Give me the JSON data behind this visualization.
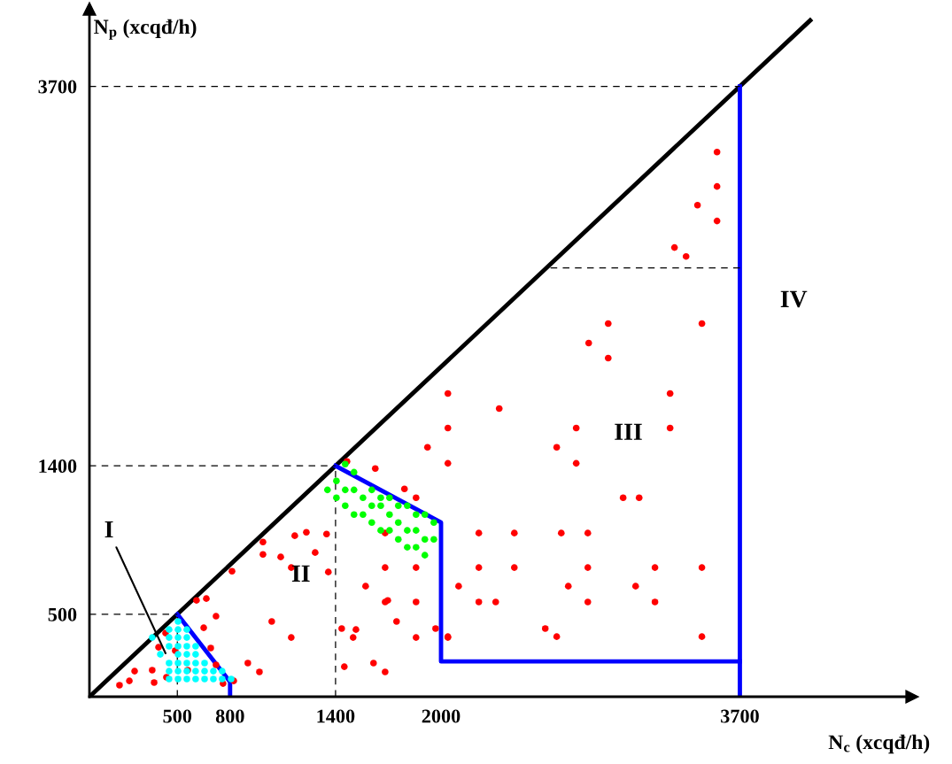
{
  "chart_data": {
    "type": "scatter",
    "xlabel": "N$_{c}$ (xcqđ/h)",
    "ylabel": "N$_{p}$ (xcqđ/h)",
    "xlim": [
      0,
      4680
    ],
    "ylim": [
      0,
      4170
    ],
    "xticks": [
      500,
      800,
      1400,
      2000,
      3700
    ],
    "yticks": [
      500,
      1400,
      3700
    ],
    "grid": false,
    "marker": "circle",
    "series": [
      {
        "color": "#ff0000",
        "x": [
          987,
          987,
          811,
          609,
          665,
          720,
          650,
          433,
          393,
          488,
          690,
          720,
          901,
          967,
          257,
          357,
          438,
          227,
          171,
          368,
          559,
          760,
          821,
          1923,
          2039,
          1626,
          1465,
          1792,
          1858,
          1168,
          1234,
          1349,
          1088,
          1284,
          1148,
          1359,
          1682,
          1682,
          1858,
          1571,
          2100,
          1682,
          1697,
          1858,
          1037,
          1747,
          1435,
          1516,
          1500,
          1148,
          1858,
          1969,
          2039,
          1450,
          1616,
          1682,
          2039,
          2331,
          2039,
          2769,
          2658,
          2769,
          2215,
          2417,
          2684,
          2835,
          2215,
          2417,
          2835,
          2724,
          2215,
          2311,
          2835,
          2593,
          2658,
          2039,
          2951,
          3484,
          2840,
          2951,
          3303,
          3303,
          3036,
          3127,
          3217,
          3484,
          3107,
          3217,
          3484,
          3570,
          3570,
          3459,
          3570,
          3328,
          3394
        ],
        "values": [
          938,
          863,
          761,
          584,
          595,
          488,
          418,
          386,
          300,
          279,
          295,
          193,
          204,
          150,
          155,
          161,
          118,
          96,
          70,
          86,
          161,
          80,
          96,
          1512,
          1415,
          1383,
          1426,
          1260,
          1206,
          976,
          997,
          986,
          847,
          874,
          783,
          756,
          992,
          783,
          783,
          670,
          670,
          574,
          584,
          574,
          456,
          456,
          413,
          407,
          359,
          359,
          359,
          413,
          359,
          182,
          204,
          150,
          1838,
          1747,
          1629,
          1629,
          1512,
          1415,
          992,
          992,
          992,
          992,
          783,
          783,
          783,
          670,
          574,
          574,
          574,
          413,
          364,
          364,
          2262,
          2262,
          2144,
          2053,
          1838,
          1629,
          1206,
          1206,
          783,
          783,
          670,
          574,
          364,
          3302,
          3093,
          2980,
          2884,
          2723,
          2669
        ]
      },
      {
        "color": "#00ff00",
        "x": [
          1455,
          1505,
          1405,
          1354,
          1455,
          1505,
          1606,
          1405,
          1556,
          1657,
          1707,
          1455,
          1606,
          1657,
          1757,
          1808,
          1505,
          1556,
          1707,
          1858,
          1908,
          1606,
          1757,
          1959,
          1657,
          1707,
          1808,
          1858,
          1757,
          1908,
          1959,
          1808,
          1858,
          1908
        ],
        "values": [
          1410,
          1361,
          1308,
          1254,
          1254,
          1254,
          1254,
          1206,
          1206,
          1206,
          1206,
          1158,
          1158,
          1158,
          1158,
          1158,
          1104,
          1104,
          1104,
          1104,
          1104,
          1056,
          1056,
          1056,
          1008,
          1008,
          1008,
          1008,
          954,
          954,
          954,
          906,
          906,
          858
        ]
      },
      {
        "color": "#00ffff",
        "x": [
          357,
          403,
          453,
          453,
          453,
          453,
          453,
          453,
          504,
          504,
          504,
          504,
          504,
          504,
          504,
          504,
          554,
          554,
          554,
          554,
          554,
          554,
          554,
          604,
          604,
          604,
          604,
          604,
          655,
          655,
          655,
          705,
          705,
          755,
          755,
          806
        ],
        "values": [
          359,
          257,
          407,
          359,
          306,
          204,
          155,
          107,
          456,
          407,
          359,
          306,
          257,
          204,
          155,
          107,
          407,
          359,
          306,
          257,
          204,
          155,
          107,
          306,
          257,
          204,
          155,
          107,
          204,
          155,
          107,
          155,
          107,
          155,
          107,
          107
        ]
      },
      {
        "type": "line",
        "color": "#000000",
        "line_style": "solid",
        "marker": "none",
        "x": [
          0,
          4100
        ],
        "values": [
          0,
          4100
        ]
      },
      {
        "type": "line",
        "color": "#0000ff",
        "line_style": "solid",
        "marker": "none",
        "x": [
          500,
          800,
          800
        ],
        "values": [
          500,
          90,
          0
        ]
      },
      {
        "type": "line",
        "color": "#0000ff",
        "line_style": "solid",
        "marker": "none",
        "x": [
          1400,
          2000,
          2000,
          3700
        ],
        "values": [
          1400,
          1056,
          214,
          214
        ]
      },
      {
        "type": "line",
        "color": "#0000ff",
        "line_style": "solid",
        "marker": "none",
        "x": [
          3700,
          3700
        ],
        "values": [
          0,
          3700
        ]
      },
      {
        "type": "line",
        "color": "#000000",
        "line_style": "dashed",
        "marker": "none",
        "x": [
          0,
          500
        ],
        "values": [
          500,
          500
        ]
      },
      {
        "type": "line",
        "color": "#000000",
        "line_style": "dashed",
        "marker": "none",
        "x": [
          0,
          1400
        ],
        "values": [
          1400,
          1400
        ]
      },
      {
        "type": "line",
        "color": "#000000",
        "line_style": "dashed",
        "marker": "none",
        "x": [
          0,
          3700
        ],
        "values": [
          3700,
          3700
        ]
      },
      {
        "type": "line",
        "color": "#000000",
        "line_style": "dashed",
        "marker": "none",
        "x": [
          1400,
          1400
        ],
        "values": [
          0,
          1400
        ]
      },
      {
        "type": "line",
        "color": "#000000",
        "line_style": "dashed",
        "marker": "none",
        "x": [
          500,
          500
        ],
        "values": [
          0,
          500
        ]
      },
      {
        "type": "line",
        "color": "#000000",
        "line_style": "dashed",
        "marker": "none",
        "x": [
          3700,
          2600
        ],
        "values": [
          2600,
          2600
        ]
      }
    ],
    "annotations": [
      {
        "text": "I",
        "x": 433,
        "y": 263
      },
      "II",
      "III",
      "IV"
    ]
  }
}
